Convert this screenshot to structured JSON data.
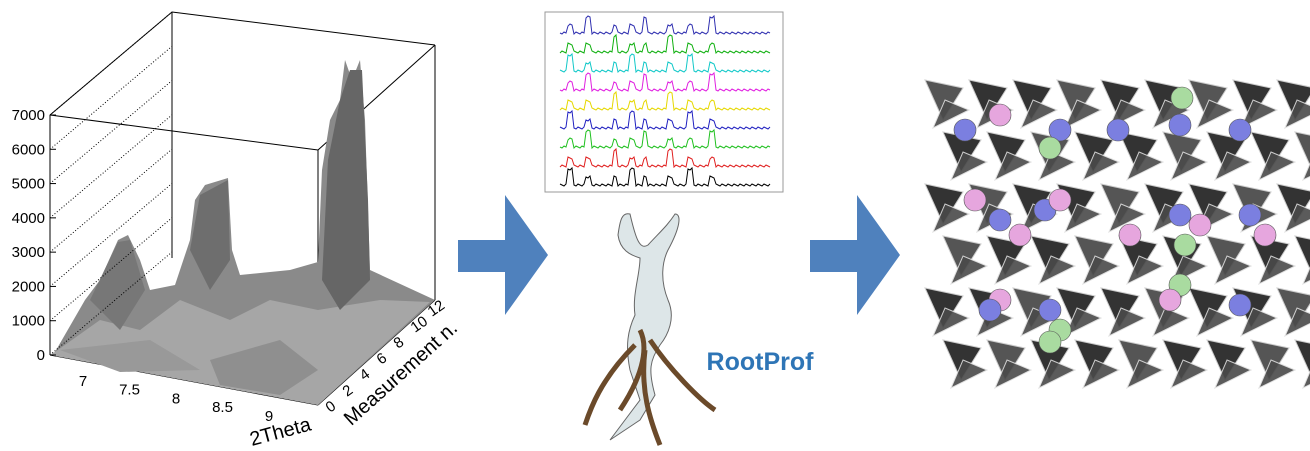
{
  "surface_plot": {
    "z_ticks": [
      0,
      1000,
      2000,
      3000,
      4000,
      5000,
      6000,
      7000
    ],
    "x_ticks": [
      7,
      7.5,
      8,
      8.5,
      9
    ],
    "x_label": "2Theta",
    "y_ticks": [
      0,
      2,
      4,
      6,
      8,
      10,
      12
    ],
    "y_label": "Measurement n."
  },
  "caption": "RootProf"
}
